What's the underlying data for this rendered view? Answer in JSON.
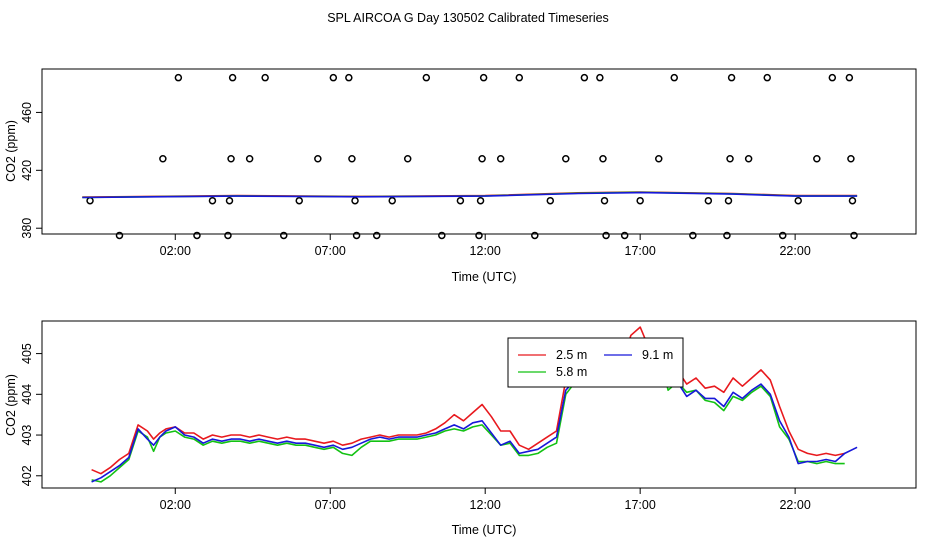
{
  "title": "SPL AIRCOA G  Day 130502  Calibrated Timeseries",
  "colors": {
    "red": "#e8191e",
    "green": "#13c213",
    "blue": "#1717d9",
    "axis": "#000000"
  },
  "chart_data": [
    {
      "type": "scatter",
      "title": "",
      "xlabel": "Time (UTC)",
      "ylabel": "CO2 (ppm)",
      "x_unit": "hours UTC",
      "xlim": [
        -2.3,
        25.9
      ],
      "ylim": [
        376,
        490
      ],
      "xticks": [
        {
          "value": 2,
          "label": "02:00"
        },
        {
          "value": 7,
          "label": "07:00"
        },
        {
          "value": 12,
          "label": "12:00"
        },
        {
          "value": 17,
          "label": "17:00"
        },
        {
          "value": 22,
          "label": "22:00"
        }
      ],
      "yticks": [
        {
          "value": 380,
          "label": "380"
        },
        {
          "value": 420,
          "label": "420"
        },
        {
          "value": 460,
          "label": "460"
        }
      ],
      "points": [
        [
          0.2,
          375
        ],
        [
          1.6,
          428
        ],
        [
          2.1,
          484
        ],
        [
          2.7,
          375
        ],
        [
          3.2,
          399
        ],
        [
          3.7,
          375
        ],
        [
          3.75,
          399
        ],
        [
          3.8,
          428
        ],
        [
          3.85,
          484
        ],
        [
          4.4,
          428
        ],
        [
          4.9,
          484
        ],
        [
          5.5,
          375
        ],
        [
          6.0,
          399
        ],
        [
          6.6,
          428
        ],
        [
          7.1,
          484
        ],
        [
          7.6,
          484
        ],
        [
          7.7,
          428
        ],
        [
          7.8,
          399
        ],
        [
          7.85,
          375
        ],
        [
          8.5,
          375
        ],
        [
          9.0,
          399
        ],
        [
          9.5,
          428
        ],
        [
          10.1,
          484
        ],
        [
          10.6,
          375
        ],
        [
          11.2,
          399
        ],
        [
          11.8,
          375
        ],
        [
          11.85,
          399
        ],
        [
          11.9,
          428
        ],
        [
          11.95,
          484
        ],
        [
          12.5,
          428
        ],
        [
          13.1,
          484
        ],
        [
          13.6,
          375
        ],
        [
          14.1,
          399
        ],
        [
          14.6,
          428
        ],
        [
          15.2,
          484
        ],
        [
          15.7,
          484
        ],
        [
          15.8,
          428
        ],
        [
          15.85,
          399
        ],
        [
          15.9,
          375
        ],
        [
          16.5,
          375
        ],
        [
          17.0,
          399
        ],
        [
          17.6,
          428
        ],
        [
          18.1,
          484
        ],
        [
          18.7,
          375
        ],
        [
          19.2,
          399
        ],
        [
          19.8,
          375
        ],
        [
          19.85,
          399
        ],
        [
          19.9,
          428
        ],
        [
          19.95,
          484
        ],
        [
          20.5,
          428
        ],
        [
          21.1,
          484
        ],
        [
          21.6,
          375
        ],
        [
          22.1,
          399
        ],
        [
          22.7,
          428
        ],
        [
          23.2,
          484
        ],
        [
          23.75,
          484
        ],
        [
          23.8,
          428
        ],
        [
          23.85,
          399
        ],
        [
          23.9,
          375
        ],
        [
          -0.75,
          399
        ]
      ],
      "series": [
        {
          "name": "2.5 m",
          "color": "#e8191e",
          "values": [
            [
              -1.0,
              401.5
            ],
            [
              4,
              402.5
            ],
            [
              8,
              402
            ],
            [
              12,
              402.5
            ],
            [
              15,
              404.5
            ],
            [
              17,
              405
            ],
            [
              20,
              404
            ],
            [
              22,
              402.5
            ],
            [
              24,
              402.5
            ]
          ]
        },
        {
          "name": "5.8 m",
          "color": "#13c213",
          "values": [
            [
              -1.0,
              401.3
            ],
            [
              4,
              402.3
            ],
            [
              8,
              401.8
            ],
            [
              12,
              402.3
            ],
            [
              15,
              404.2
            ],
            [
              17,
              404.8
            ],
            [
              20,
              403.8
            ],
            [
              22,
              402.3
            ],
            [
              24,
              402.3
            ]
          ]
        },
        {
          "name": "9.1 m",
          "color": "#1717d9",
          "values": [
            [
              -1.0,
              401.2
            ],
            [
              4,
              402.2
            ],
            [
              8,
              401.7
            ],
            [
              12,
              402.2
            ],
            [
              15,
              404.0
            ],
            [
              17,
              404.6
            ],
            [
              20,
              403.6
            ],
            [
              22,
              402.2
            ],
            [
              24,
              402.2
            ]
          ]
        }
      ]
    },
    {
      "type": "line",
      "title": "",
      "xlabel": "Time (UTC)",
      "ylabel": "CO2 (ppm)",
      "x_unit": "hours UTC",
      "xlim": [
        -2.3,
        25.9
      ],
      "ylim": [
        401.7,
        405.8
      ],
      "xticks": [
        {
          "value": 2,
          "label": "02:00"
        },
        {
          "value": 7,
          "label": "07:00"
        },
        {
          "value": 12,
          "label": "12:00"
        },
        {
          "value": 17,
          "label": "17:00"
        },
        {
          "value": 22,
          "label": "22:00"
        }
      ],
      "yticks": [
        {
          "value": 402,
          "label": "402"
        },
        {
          "value": 403,
          "label": "403"
        },
        {
          "value": 404,
          "label": "404"
        },
        {
          "value": 405,
          "label": "405"
        }
      ],
      "legend": {
        "position": "top-center",
        "entries": [
          "2.5 m",
          "9.1 m",
          "5.8 m"
        ]
      },
      "series": [
        {
          "name": "2.5 m",
          "color": "#e8191e",
          "x": [
            -0.7,
            -0.4,
            -0.1,
            0.2,
            0.5,
            0.8,
            1.1,
            1.3,
            1.5,
            1.7,
            2.0,
            2.3,
            2.6,
            2.9,
            3.2,
            3.5,
            3.8,
            4.1,
            4.4,
            4.7,
            5.0,
            5.3,
            5.6,
            5.9,
            6.2,
            6.5,
            6.8,
            7.1,
            7.4,
            7.7,
            8.0,
            8.3,
            8.6,
            8.9,
            9.2,
            9.5,
            9.8,
            10.1,
            10.4,
            10.7,
            11.0,
            11.3,
            11.6,
            11.9,
            12.2,
            12.5,
            12.8,
            13.1,
            13.4,
            13.7,
            14.0,
            14.3,
            14.6,
            14.9,
            15.2,
            15.5,
            15.8,
            16.1,
            16.4,
            16.7,
            17.0,
            17.3,
            17.6,
            17.9,
            18.2,
            18.5,
            18.8,
            19.1,
            19.4,
            19.7,
            20.0,
            20.3,
            20.6,
            20.9,
            21.2,
            21.5,
            21.8,
            22.1,
            22.4,
            22.7,
            23.0,
            23.3,
            23.6
          ],
          "y": [
            402.15,
            402.05,
            402.2,
            402.4,
            402.55,
            403.25,
            403.1,
            402.9,
            403.05,
            403.15,
            403.2,
            403.05,
            403.05,
            402.9,
            403.0,
            402.95,
            403.0,
            403.0,
            402.95,
            403.0,
            402.95,
            402.9,
            402.95,
            402.9,
            402.9,
            402.85,
            402.8,
            402.85,
            402.75,
            402.8,
            402.9,
            402.95,
            403.0,
            402.95,
            403.0,
            403.0,
            403.0,
            403.05,
            403.15,
            403.3,
            403.5,
            403.35,
            403.55,
            403.75,
            403.45,
            403.1,
            403.1,
            402.75,
            402.65,
            402.8,
            402.95,
            403.1,
            404.35,
            404.5,
            404.55,
            404.8,
            404.6,
            404.95,
            404.75,
            405.45,
            405.65,
            405.1,
            405.3,
            404.35,
            404.6,
            404.25,
            404.4,
            404.15,
            404.2,
            404.05,
            404.4,
            404.2,
            404.4,
            404.6,
            404.35,
            403.7,
            403.1,
            402.65,
            402.55,
            402.5,
            402.55,
            402.5,
            402.55
          ]
        },
        {
          "name": "5.8 m",
          "color": "#13c213",
          "x": [
            -0.7,
            -0.4,
            -0.1,
            0.2,
            0.5,
            0.8,
            1.1,
            1.3,
            1.5,
            1.7,
            2.0,
            2.3,
            2.6,
            2.9,
            3.2,
            3.5,
            3.8,
            4.1,
            4.4,
            4.7,
            5.0,
            5.3,
            5.6,
            5.9,
            6.2,
            6.5,
            6.8,
            7.1,
            7.4,
            7.7,
            8.0,
            8.3,
            8.6,
            8.9,
            9.2,
            9.5,
            9.8,
            10.1,
            10.4,
            10.7,
            11.0,
            11.3,
            11.6,
            11.9,
            12.2,
            12.5,
            12.8,
            13.1,
            13.4,
            13.7,
            14.0,
            14.3,
            14.6,
            14.9,
            15.2,
            15.5,
            15.8,
            16.1,
            16.4,
            16.7,
            17.0,
            17.3,
            17.6,
            17.9,
            18.2,
            18.5,
            18.8,
            19.1,
            19.4,
            19.7,
            20.0,
            20.3,
            20.6,
            20.9,
            21.2,
            21.5,
            21.8,
            22.1,
            22.4,
            22.7,
            23.0,
            23.3,
            23.6
          ],
          "y": [
            401.9,
            401.85,
            402.0,
            402.2,
            402.4,
            403.1,
            402.95,
            402.6,
            402.95,
            403.05,
            403.1,
            402.95,
            402.9,
            402.75,
            402.85,
            402.8,
            402.85,
            402.85,
            402.8,
            402.85,
            402.8,
            402.75,
            402.8,
            402.75,
            402.75,
            402.7,
            402.65,
            402.7,
            402.55,
            402.5,
            402.7,
            402.85,
            402.85,
            402.85,
            402.9,
            402.9,
            402.9,
            402.95,
            403.0,
            403.1,
            403.15,
            403.1,
            403.2,
            403.25,
            403.0,
            402.75,
            402.8,
            402.5,
            402.5,
            402.55,
            402.7,
            402.8,
            404.0,
            404.3,
            404.4,
            404.65,
            404.45,
            404.8,
            404.65,
            405.15,
            405.25,
            404.9,
            405.05,
            404.1,
            404.3,
            404.05,
            404.1,
            403.85,
            403.8,
            403.6,
            403.95,
            403.85,
            404.05,
            404.2,
            403.95,
            403.2,
            402.9,
            402.35,
            402.35,
            402.3,
            402.35,
            402.3,
            402.3
          ]
        },
        {
          "name": "9.1 m",
          "color": "#1717d9",
          "x": [
            -0.7,
            -0.4,
            -0.1,
            0.2,
            0.5,
            0.8,
            1.1,
            1.3,
            1.5,
            1.7,
            2.0,
            2.3,
            2.6,
            2.9,
            3.2,
            3.5,
            3.8,
            4.1,
            4.4,
            4.7,
            5.0,
            5.3,
            5.6,
            5.9,
            6.2,
            6.5,
            6.8,
            7.1,
            7.4,
            7.7,
            8.0,
            8.3,
            8.6,
            8.9,
            9.2,
            9.5,
            9.8,
            10.1,
            10.4,
            10.7,
            11.0,
            11.3,
            11.6,
            11.9,
            12.2,
            12.5,
            12.8,
            13.1,
            13.4,
            13.7,
            14.0,
            14.3,
            14.6,
            14.9,
            15.2,
            15.5,
            15.8,
            16.1,
            16.4,
            16.7,
            17.0,
            17.3,
            17.6,
            17.9,
            18.2,
            18.5,
            18.8,
            19.1,
            19.4,
            19.7,
            20.0,
            20.3,
            20.6,
            20.9,
            21.2,
            21.5,
            21.8,
            22.1,
            22.4,
            22.7,
            23.0,
            23.3,
            23.6,
            24.0
          ],
          "y": [
            401.85,
            401.95,
            402.1,
            402.25,
            402.45,
            403.15,
            402.9,
            402.75,
            402.95,
            403.1,
            403.2,
            403.0,
            402.95,
            402.8,
            402.9,
            402.85,
            402.9,
            402.9,
            402.85,
            402.9,
            402.85,
            402.8,
            402.85,
            402.8,
            402.8,
            402.75,
            402.7,
            402.75,
            402.65,
            402.7,
            402.8,
            402.9,
            402.95,
            402.9,
            402.95,
            402.95,
            402.95,
            403.0,
            403.05,
            403.15,
            403.25,
            403.15,
            403.3,
            403.35,
            403.05,
            402.75,
            402.85,
            402.55,
            402.6,
            402.65,
            402.8,
            402.95,
            404.1,
            404.35,
            404.45,
            404.7,
            404.5,
            404.85,
            404.7,
            405.25,
            405.35,
            405.0,
            405.1,
            404.2,
            404.3,
            403.95,
            404.1,
            403.9,
            403.9,
            403.7,
            404.05,
            403.9,
            404.1,
            404.25,
            404.0,
            403.35,
            402.95,
            402.3,
            402.35,
            402.35,
            402.4,
            402.35,
            402.55,
            402.7
          ]
        }
      ]
    }
  ]
}
